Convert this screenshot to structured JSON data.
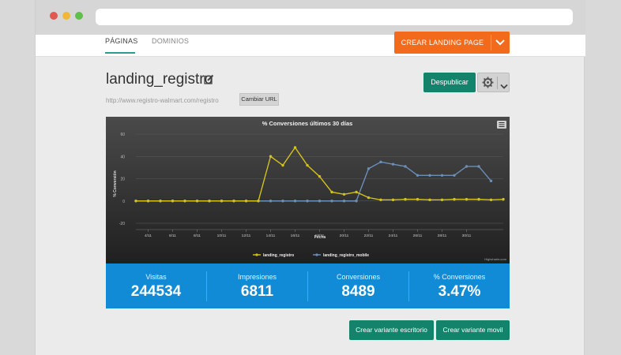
{
  "window": {
    "controls": [
      {
        "name": "close",
        "color": "#e0584e"
      },
      {
        "name": "minimize",
        "color": "#f0b73a"
      },
      {
        "name": "maximize",
        "color": "#5fbf4a"
      }
    ]
  },
  "nav": {
    "tabs": [
      {
        "label": "PÁGINAS",
        "active": true
      },
      {
        "label": "DOMINIOS",
        "active": false
      }
    ],
    "crear_label": "CREAR LANDING PAGE",
    "accent_color": "#f26b1d"
  },
  "page": {
    "title": "landing_registro",
    "url": "http://www.registro-walmart.com/registro",
    "cambiar_label": "Cambiar URL",
    "despublicar_label": "Despublicar"
  },
  "chart_data": {
    "type": "line",
    "title": "% Conversiones últimos 30 días",
    "xlabel": "Fecha",
    "ylabel": "% Conversión",
    "ylim": [
      -20,
      60
    ],
    "yticks": [
      -20,
      0,
      20,
      40,
      60
    ],
    "x": [
      "3/11",
      "4/11",
      "5/11",
      "6/11",
      "7/11",
      "8/11",
      "9/11",
      "10/11",
      "11/11",
      "12/11",
      "13/11",
      "14/11",
      "15/11",
      "16/11",
      "17/11",
      "18/11",
      "19/11",
      "20/11",
      "21/11",
      "22/11",
      "23/11",
      "24/11",
      "25/11",
      "26/11",
      "27/11",
      "28/11",
      "29/11",
      "30/11",
      "1/12",
      "2/12",
      "3/12"
    ],
    "xticks": [
      "4/11",
      "6/11",
      "8/11",
      "10/11",
      "12/11",
      "14/11",
      "16/11",
      "18/11",
      "20/11",
      "22/11",
      "24/11",
      "26/11",
      "28/11",
      "30/11"
    ],
    "series": [
      {
        "name": "landing_registro",
        "color": "#d4c21a",
        "values": [
          0,
          0,
          0,
          0,
          0,
          0,
          0,
          0,
          0,
          0,
          0,
          40,
          32,
          48,
          32,
          22,
          8,
          6,
          8,
          3,
          1,
          1,
          1.5,
          1.5,
          1,
          1,
          1.5,
          1.5,
          1.5,
          1,
          1.5
        ]
      },
      {
        "name": "landing_registro_mobile",
        "color": "#6b8fb8",
        "values": [
          0,
          0,
          0,
          0,
          0,
          0,
          0,
          0,
          0,
          0,
          0,
          0,
          0,
          0,
          0,
          0,
          0,
          0,
          0,
          29,
          35,
          33,
          31,
          23,
          23,
          23,
          23,
          31,
          31,
          18,
          null
        ]
      }
    ],
    "legend": "bottom-center",
    "credits": "Highcharts.com",
    "grid": true
  },
  "stats": [
    {
      "label": "Visitas",
      "value": "244534"
    },
    {
      "label": "Impresiones",
      "value": "6811"
    },
    {
      "label": "Conversiones",
      "value": "8489"
    },
    {
      "label": "% Conversiones",
      "value": "3.47%"
    }
  ],
  "actions": {
    "desktop_variant": "Crear variante escritorio",
    "mobile_variant": "Crear variante movil"
  }
}
